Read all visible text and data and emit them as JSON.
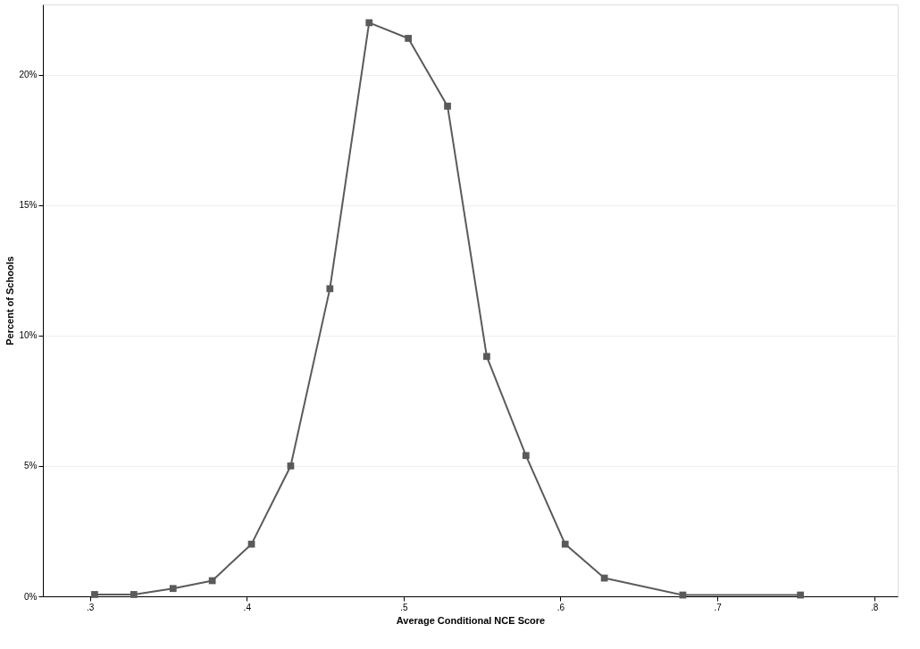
{
  "chart_data": {
    "type": "line",
    "xlabel": "Average Conditional NCE Score",
    "ylabel": "Percent of Schools",
    "x": [
      0.303,
      0.328,
      0.353,
      0.378,
      0.403,
      0.428,
      0.453,
      0.478,
      0.503,
      0.528,
      0.553,
      0.578,
      0.603,
      0.628,
      0.678,
      0.753
    ],
    "series": [
      {
        "color": "#5a5a5a",
        "values": [
          0.07,
          0.07,
          0.3,
          0.6,
          2.0,
          5.0,
          11.8,
          22.0,
          21.4,
          18.8,
          9.2,
          5.4,
          2.0,
          0.7,
          0.05,
          0.05
        ]
      }
    ],
    "marker": "square",
    "line_style": "solid",
    "grid": "y",
    "xlim": [
      0.27,
      0.815
    ],
    "ylim": [
      0,
      22.7
    ],
    "xticks": [
      {
        "value": 0.3,
        "label": ".3"
      },
      {
        "value": 0.4,
        "label": ".4"
      },
      {
        "value": 0.5,
        "label": ".5"
      },
      {
        "value": 0.6,
        "label": ".6"
      },
      {
        "value": 0.7,
        "label": ".7"
      },
      {
        "value": 0.8,
        "label": ".8"
      }
    ],
    "yticks": [
      {
        "value": 0,
        "label": "0%"
      },
      {
        "value": 5,
        "label": "5%"
      },
      {
        "value": 10,
        "label": "10%"
      },
      {
        "value": 15,
        "label": "15%"
      },
      {
        "value": 20,
        "label": "20%"
      }
    ]
  }
}
